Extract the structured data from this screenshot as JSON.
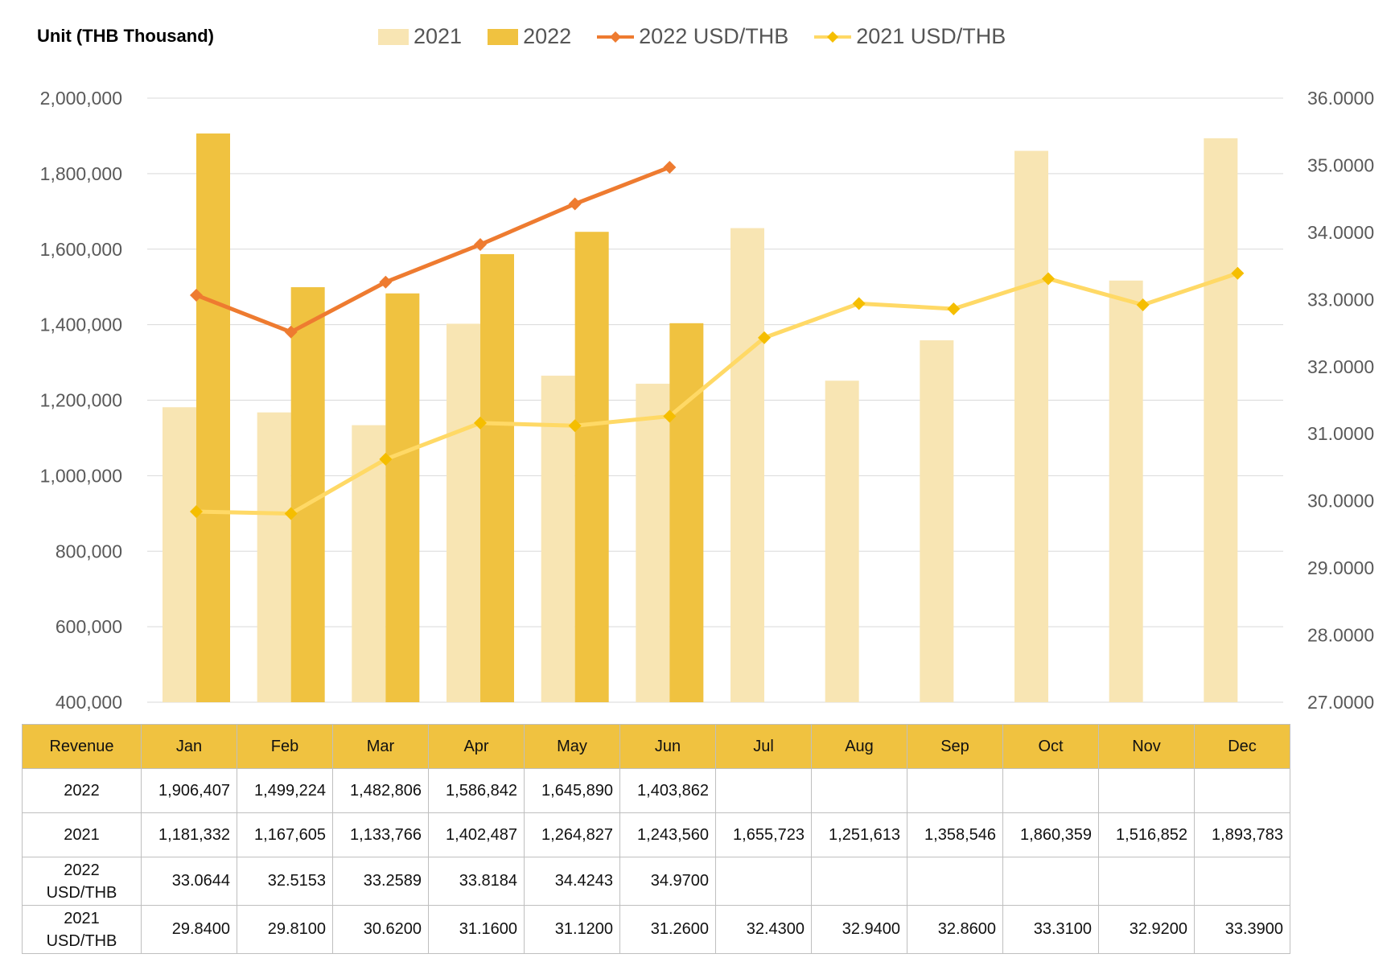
{
  "chart_data": {
    "type": "bar",
    "unit_label": "Unit (THB  Thousand)",
    "categories": [
      "Jan",
      "Feb",
      "Mar",
      "Apr",
      "May",
      "Jun",
      "Jul",
      "Aug",
      "Sep",
      "Oct",
      "Nov",
      "Dec"
    ],
    "y_left": {
      "min": 400000,
      "max": 2000000,
      "step": 200000,
      "ticks": [
        "400,000",
        "600,000",
        "800,000",
        "1,000,000",
        "1,200,000",
        "1,400,000",
        "1,600,000",
        "1,800,000",
        "2,000,000"
      ]
    },
    "y_right": {
      "min": 27,
      "max": 36,
      "step": 1,
      "ticks": [
        "27.0000",
        "28.0000",
        "29.0000",
        "30.0000",
        "31.0000",
        "32.0000",
        "33.0000",
        "34.0000",
        "35.0000",
        "36.0000"
      ]
    },
    "grid": true,
    "legend_position": "top",
    "series": [
      {
        "name": "2021",
        "kind": "bar",
        "axis": "left",
        "color": "#F8E5B3",
        "values": [
          1181332,
          1167605,
          1133766,
          1402487,
          1264827,
          1243560,
          1655723,
          1251613,
          1358546,
          1860359,
          1516852,
          1893783
        ]
      },
      {
        "name": "2022",
        "kind": "bar",
        "axis": "left",
        "color": "#F0C240",
        "values": [
          1906407,
          1499224,
          1482806,
          1586842,
          1645890,
          1403862,
          null,
          null,
          null,
          null,
          null,
          null
        ]
      },
      {
        "name": "2022 USD/THB",
        "kind": "line",
        "axis": "right",
        "color": "#EE7B30",
        "marker_color": "#EE7B30",
        "values": [
          33.0644,
          32.5153,
          33.2589,
          33.8184,
          34.4243,
          34.97,
          null,
          null,
          null,
          null,
          null,
          null
        ]
      },
      {
        "name": "2021 USD/THB",
        "kind": "line",
        "axis": "right",
        "color": "#FFD966",
        "marker_color": "#F5BE00",
        "values": [
          29.84,
          29.81,
          30.62,
          31.16,
          31.12,
          31.26,
          32.43,
          32.94,
          32.86,
          33.31,
          32.92,
          33.39
        ]
      }
    ]
  },
  "table": {
    "header_label": "Revenue",
    "months": [
      "Jan",
      "Feb",
      "Mar",
      "Apr",
      "May",
      "Jun",
      "Jul",
      "Aug",
      "Sep",
      "Oct",
      "Nov",
      "Dec"
    ],
    "rows": [
      {
        "label": "2022",
        "cells": [
          "1,906,407",
          "1,499,224",
          "1,482,806",
          "1,586,842",
          "1,645,890",
          "1,403,862",
          "",
          "",
          "",
          "",
          "",
          ""
        ]
      },
      {
        "label": "2021",
        "cells": [
          "1,181,332",
          "1,167,605",
          "1,133,766",
          "1,402,487",
          "1,264,827",
          "1,243,560",
          "1,655,723",
          "1,251,613",
          "1,358,546",
          "1,860,359",
          "1,516,852",
          "1,893,783"
        ]
      },
      {
        "label": "2022\nUSD/THB",
        "cells": [
          "33.0644",
          "32.5153",
          "33.2589",
          "33.8184",
          "34.4243",
          "34.9700",
          "",
          "",
          "",
          "",
          "",
          ""
        ]
      },
      {
        "label": "2021\nUSD/THB",
        "cells": [
          "29.8400",
          "29.8100",
          "30.6200",
          "31.1600",
          "31.1200",
          "31.2600",
          "32.4300",
          "32.9400",
          "32.8600",
          "33.3100",
          "32.9200",
          "33.3900"
        ]
      }
    ]
  }
}
